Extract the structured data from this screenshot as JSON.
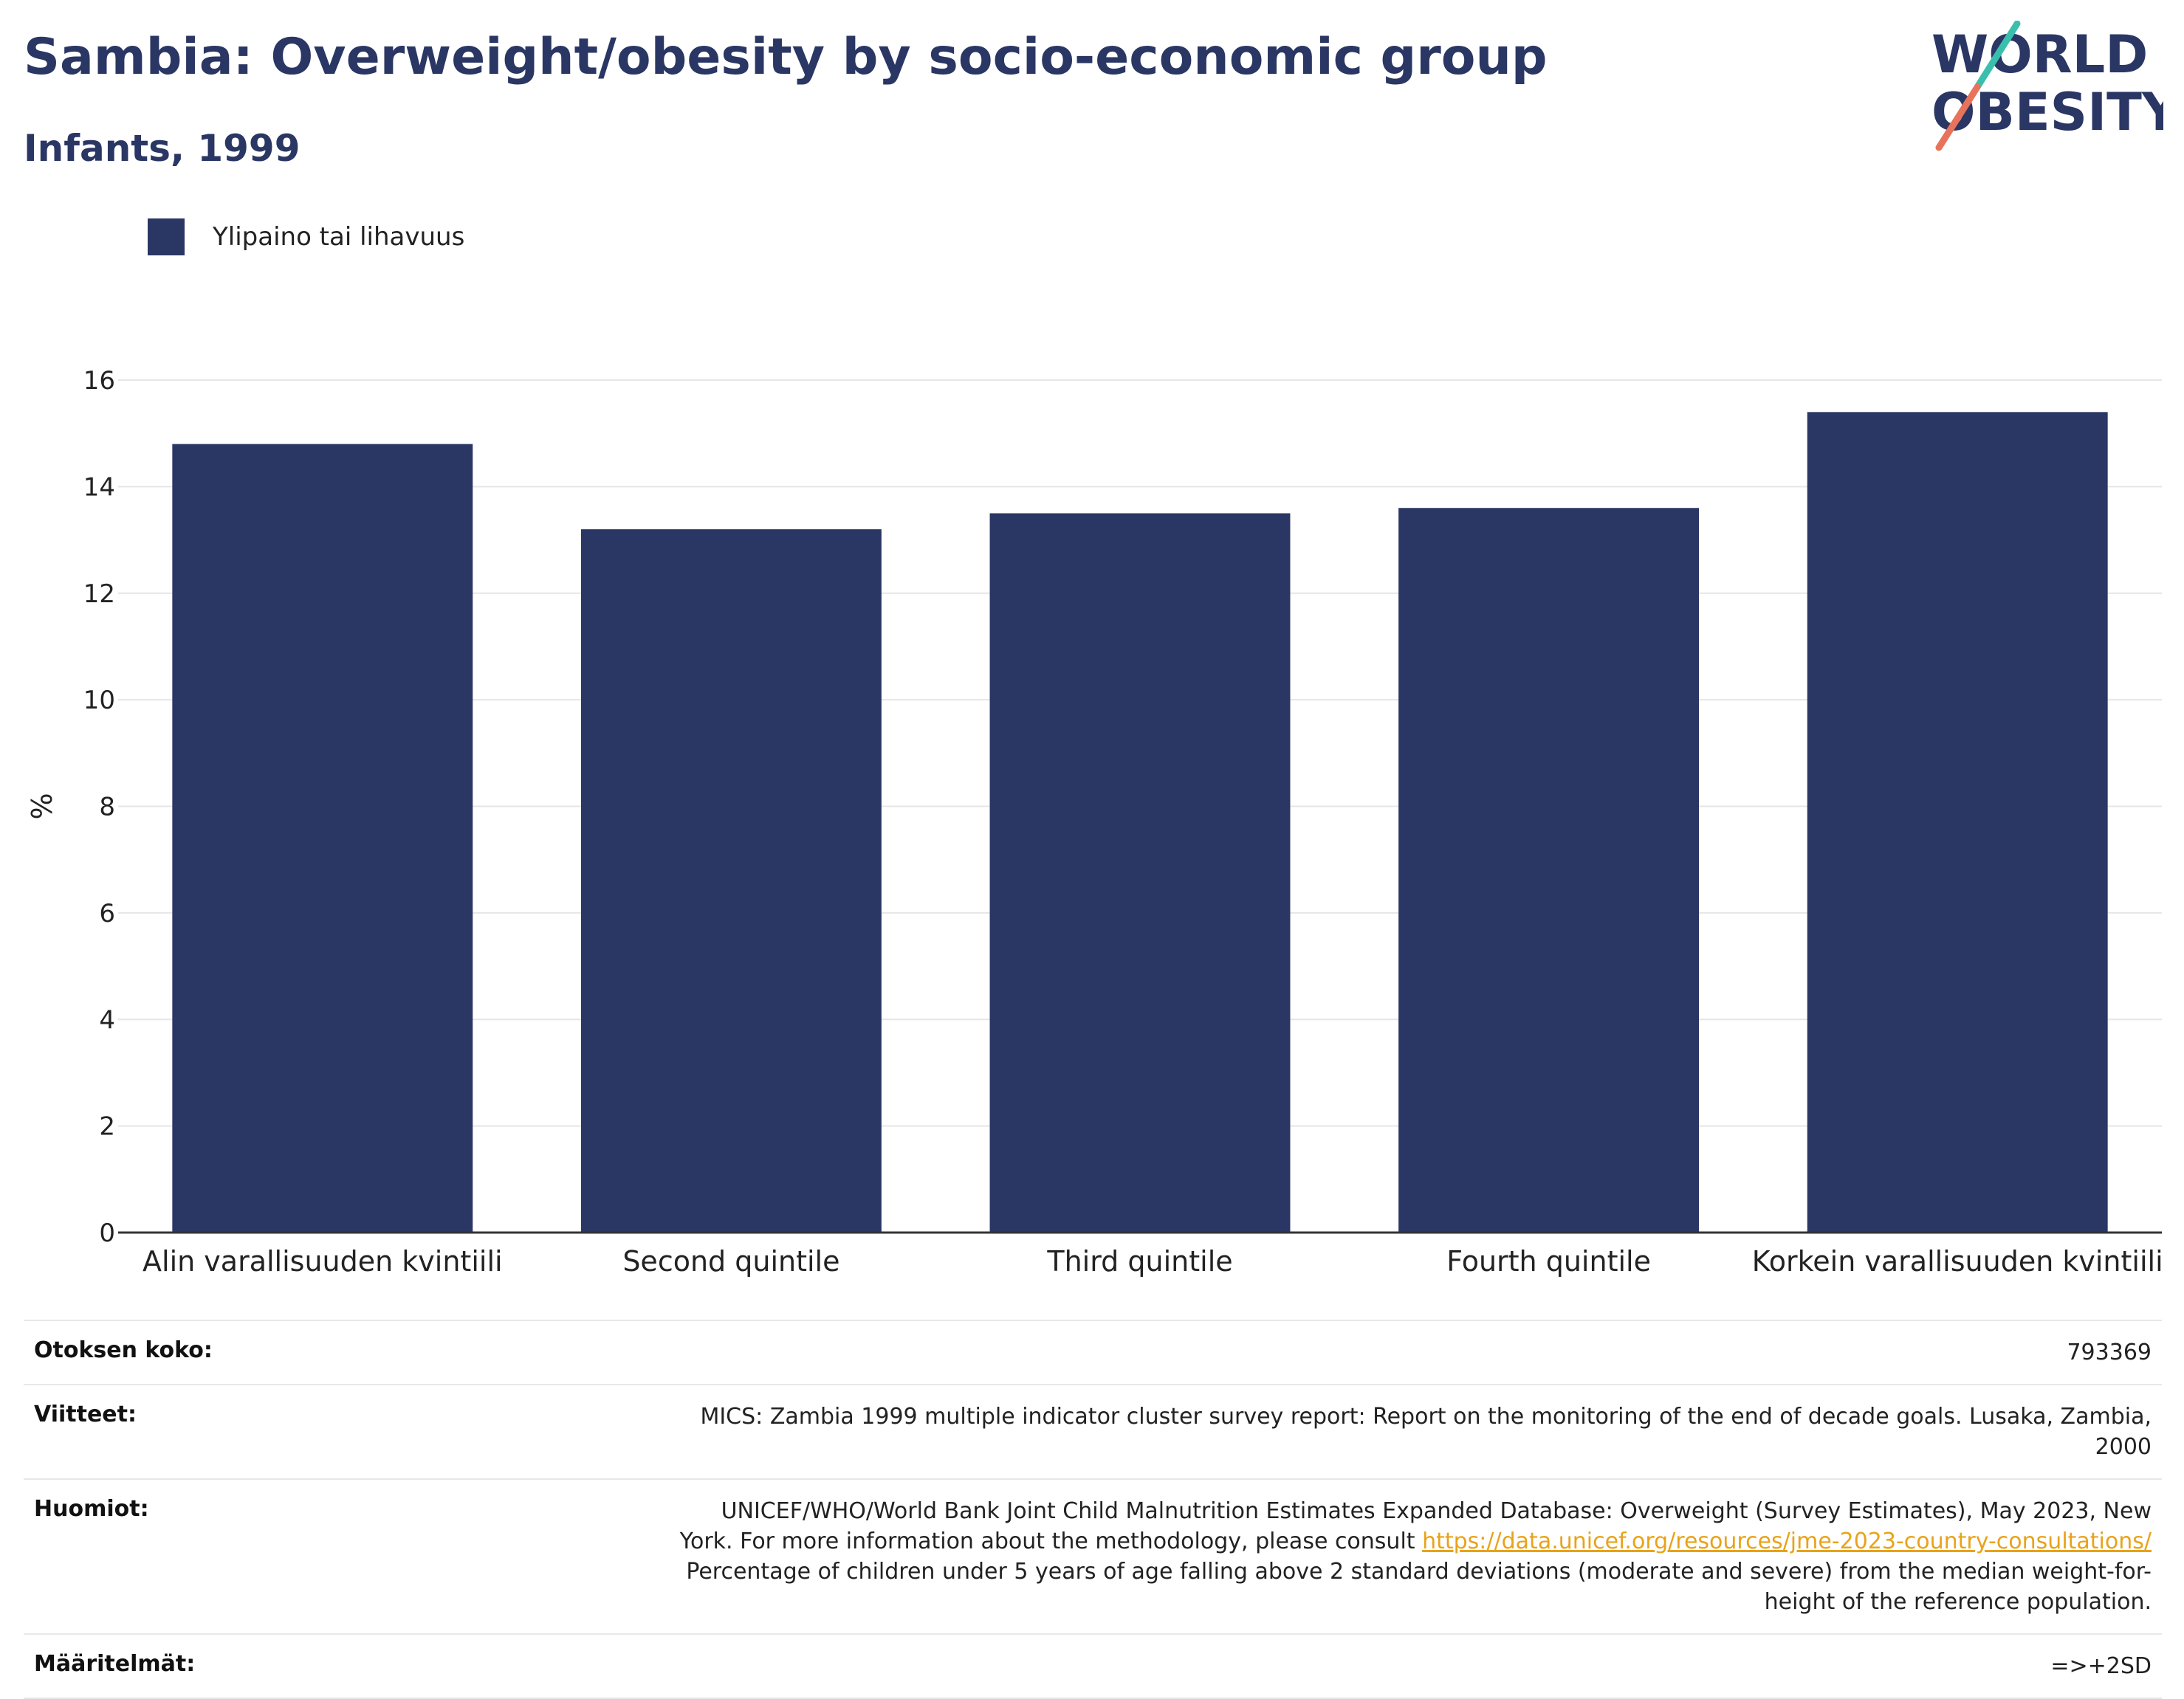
{
  "header": {
    "title": "Sambia: Overweight/obesity by socio-economic group",
    "subtitle": "Infants, 1999"
  },
  "logo": {
    "line1": "WORLD",
    "line2": "OBESITY",
    "brand_color": "#2a3663",
    "accent_teal": "#3bbfad",
    "accent_coral": "#e8735a"
  },
  "colors": {
    "bar": "#2a3663",
    "grid": "#e6e6e6",
    "axis": "#333333"
  },
  "chart_data": {
    "type": "bar",
    "title": "Sambia: Overweight/obesity by socio-economic group",
    "subtitle": "Infants, 1999",
    "categories": [
      "Alin varallisuuden kvintiili",
      "Second quintile",
      "Third quintile",
      "Fourth quintile",
      "Korkein varallisuuden kvintiili"
    ],
    "series": [
      {
        "name": "Ylipaino tai lihavuus",
        "values": [
          14.8,
          13.2,
          13.5,
          13.6,
          15.4
        ]
      }
    ],
    "xlabel": "",
    "ylabel": "%",
    "ylim": [
      0,
      16
    ],
    "yticks": [
      0,
      2,
      4,
      6,
      8,
      10,
      12,
      14,
      16
    ],
    "grid": true,
    "legend_position": "top-left"
  },
  "table": {
    "sample_label": "Otoksen koko:",
    "sample_value": "793369",
    "refs_label": "Viitteet:",
    "refs_value": "MICS: Zambia 1999 multiple indicator cluster survey report: Report on the monitoring of the end of decade goals. Lusaka, Zambia, 2000",
    "notes_label": "Huomiot:",
    "notes_line1": "UNICEF/WHO/World Bank Joint Child Malnutrition Estimates Expanded Database: Overweight (Survey Estimates), May 2023, New",
    "notes_line2_pre": "York. For more information about the methodology, please consult ",
    "notes_link": "https://data.unicef.org/resources/jme-2023-country-consultations/",
    "notes_line3": "Percentage of children under 5 years of age falling above 2 standard deviations (moderate and severe) from the median weight-for-",
    "notes_line4": "height of the reference population.",
    "defs_label": "Määritelmät:",
    "defs_value": "=>+2SD"
  }
}
